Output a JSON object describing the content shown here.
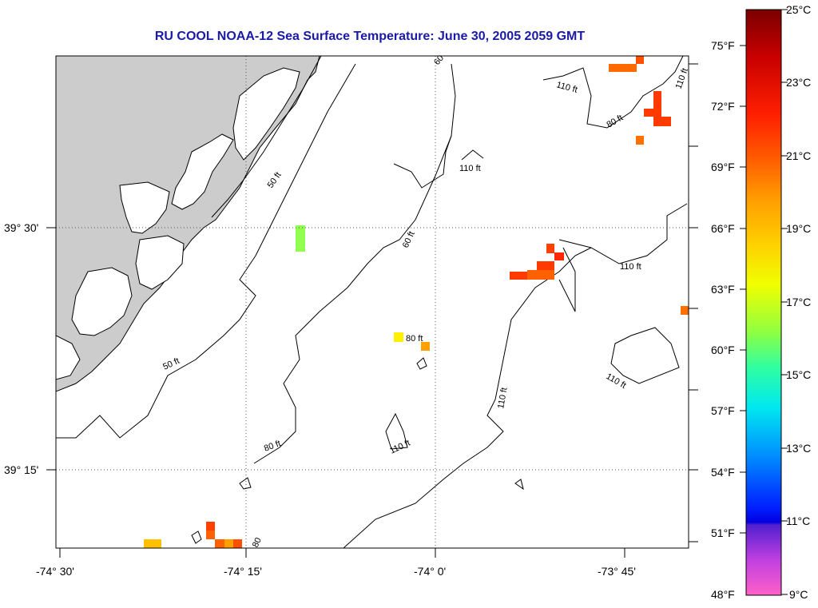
{
  "title": "RU COOL  NOAA-12  Sea Surface Temperature:  June 30, 2005 2059 GMT",
  "axes": {
    "x_ticks": [
      "-74° 30'",
      "-74° 15'",
      "-74° 0'",
      "-73° 45'"
    ],
    "y_ticks": [
      "39° 30'",
      "39° 15'"
    ]
  },
  "contours": {
    "c50a": "50 ft",
    "c50b": "50 ft",
    "c60a": "60 ft",
    "c60b": "60",
    "c80a": "80 ft",
    "c80b": "80 ft",
    "c80c": "80 ft",
    "c80d": "80",
    "c110a": "110 ft",
    "c110b": "110 ft",
    "c110c": "110 ft",
    "c110d": "110 ft",
    "c110e": "110 ft",
    "c110f": "110 ft",
    "c110g": "110 ft"
  },
  "colorbar": {
    "celsius": [
      "25°C",
      "23°C",
      "21°C",
      "19°C",
      "17°C",
      "15°C",
      "13°C",
      "11°C",
      "9°C"
    ],
    "fahrenheit": [
      "75°F",
      "72°F",
      "69°F",
      "66°F",
      "63°F",
      "60°F",
      "57°F",
      "54°F",
      "51°F",
      "48°F"
    ]
  },
  "colors": {
    "land": "#cccccc",
    "title": "#1a1aa8",
    "grid": "#555555"
  }
}
